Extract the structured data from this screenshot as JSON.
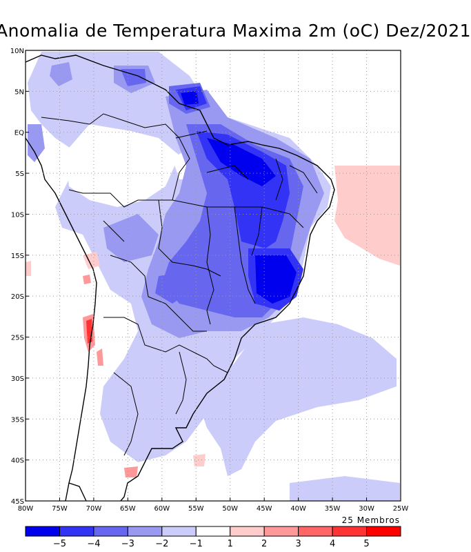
{
  "title": "Anomalia de Temperatura Maxima 2m (oC) Dez/2021",
  "members_note": "25 Membros",
  "map": {
    "lon_range": [
      -80,
      -25
    ],
    "lat_range": [
      -45,
      10
    ],
    "lon_labels": [
      "80W",
      "75W",
      "70W",
      "65W",
      "60W",
      "55W",
      "50W",
      "45W",
      "40W",
      "35W",
      "30W",
      "25W"
    ],
    "lat_labels": [
      "10N",
      "5N",
      "EQ",
      "5S",
      "10S",
      "15S",
      "20S",
      "25S",
      "30S",
      "35S",
      "40S",
      "45S"
    ],
    "grid": "dotted"
  },
  "colorbar": {
    "labels": [
      "-5",
      "-4",
      "-3",
      "-2",
      "-1",
      "1",
      "2",
      "3",
      "4",
      "5"
    ],
    "colors": [
      "#0000ee",
      "#3333f5",
      "#6666ee",
      "#9999f2",
      "#ccccfa",
      "#ffffff",
      "#ffcccc",
      "#ff9999",
      "#ff6666",
      "#ff3333",
      "#ff0000"
    ]
  }
}
